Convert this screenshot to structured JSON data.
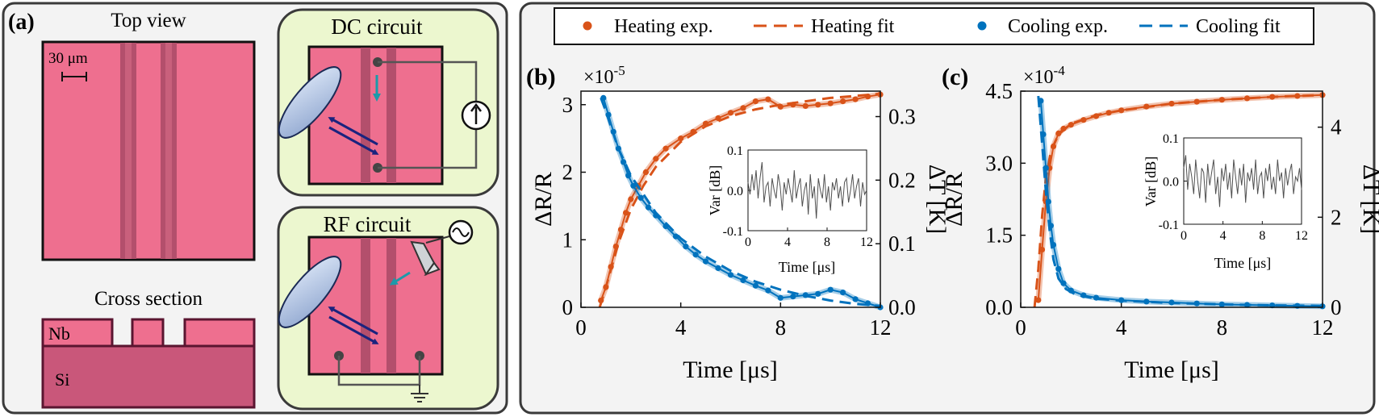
{
  "panel_a": {
    "label": "(a)",
    "top_view_title": "Top view",
    "scale_bar": "30 μm",
    "cross_section_title": "Cross section",
    "nb_label": "Nb",
    "si_label": "Si",
    "dc_title": "DC circuit",
    "rf_title": "RF circuit"
  },
  "colors": {
    "heating": "#d95319",
    "cooling": "#0072bd",
    "film": "#ee6f8f",
    "circuit_bg": "#ecf7cf",
    "inset_line": "#505050"
  },
  "legend": {
    "heating_exp": "Heating exp.",
    "heating_fit": "Heating fit",
    "cooling_exp": "Cooling exp.",
    "cooling_fit": "Cooling fit"
  },
  "chart_data": [
    {
      "panel": "(b)",
      "type": "line",
      "multiplier": "×10",
      "multiplier_exp": "-5",
      "xlabel": "Time [μs]",
      "ylabel": "ΔR/R",
      "y2label": "ΔT [K]",
      "xlim": [
        0,
        12
      ],
      "ylim": [
        0,
        3.2
      ],
      "y2lim": [
        0,
        0.34
      ],
      "xticks": [
        "0",
        "4",
        "8",
        "12"
      ],
      "yticks": [
        "0",
        "1",
        "2",
        "3"
      ],
      "y2ticks": [
        "0.0",
        "0.1",
        "0.2",
        "0.3"
      ],
      "series": [
        {
          "name": "Heating exp.",
          "style": "dots",
          "x": [
            0.8,
            1.0,
            1.2,
            1.4,
            1.6,
            1.8,
            2.0,
            2.3,
            2.6,
            3.0,
            3.4,
            4.0,
            4.5,
            5.0,
            5.5,
            6.0,
            6.5,
            7.0,
            7.5,
            8.0,
            8.5,
            9.0,
            9.5,
            10.0,
            10.5,
            11.0,
            11.5,
            12.0
          ],
          "y": [
            0.1,
            0.3,
            0.6,
            0.9,
            1.15,
            1.4,
            1.6,
            1.8,
            2.0,
            2.2,
            2.35,
            2.5,
            2.6,
            2.72,
            2.8,
            2.88,
            2.95,
            3.05,
            3.08,
            2.97,
            3.0,
            2.98,
            3.0,
            3.02,
            3.05,
            3.08,
            3.12,
            3.15
          ]
        },
        {
          "name": "Heating fit",
          "style": "dashed",
          "x": [
            0.75,
            1.0,
            1.5,
            2.0,
            2.5,
            3.0,
            4.0,
            5.0,
            6.0,
            7.0,
            8.0,
            9.0,
            10.0,
            11.0,
            12.0
          ],
          "y": [
            0,
            0.3,
            0.95,
            1.45,
            1.8,
            2.08,
            2.45,
            2.68,
            2.83,
            2.93,
            3.0,
            3.05,
            3.1,
            3.13,
            3.16
          ]
        },
        {
          "name": "Cooling exp.",
          "style": "dots",
          "x": [
            0.9,
            1.1,
            1.3,
            1.5,
            1.7,
            1.9,
            2.1,
            2.4,
            2.7,
            3.0,
            3.4,
            3.8,
            4.2,
            4.6,
            5.0,
            5.5,
            6.0,
            6.5,
            7.0,
            7.5,
            8.0,
            8.5,
            9.0,
            9.5,
            10.0,
            10.5,
            11.0,
            11.5,
            12.0
          ],
          "y": [
            3.1,
            2.85,
            2.6,
            2.35,
            2.15,
            1.95,
            1.8,
            1.62,
            1.48,
            1.36,
            1.2,
            1.05,
            0.9,
            0.78,
            0.68,
            0.58,
            0.48,
            0.4,
            0.32,
            0.25,
            0.14,
            0.16,
            0.18,
            0.2,
            0.26,
            0.22,
            0.12,
            0.06,
            0.0
          ]
        },
        {
          "name": "Cooling fit",
          "style": "dashed",
          "x": [
            0.8,
            1.0,
            1.5,
            2.0,
            3.0,
            4.0,
            5.0,
            6.0,
            7.0,
            8.0,
            9.0,
            10.0,
            11.0,
            12.0
          ],
          "y": [
            3.1,
            2.9,
            2.35,
            1.95,
            1.4,
            1.02,
            0.75,
            0.54,
            0.38,
            0.26,
            0.17,
            0.1,
            0.05,
            0.02
          ]
        }
      ],
      "inset": {
        "xlabel": "Time [μs]",
        "ylabel": "Var [dB]",
        "xlim": [
          0,
          12
        ],
        "ylim": [
          -0.1,
          0.1
        ],
        "xticks": [
          "0",
          "4",
          "8",
          "12"
        ],
        "yticks": [
          "-0.1",
          "0.0",
          "0.1"
        ],
        "values": [
          0.02,
          -0.01,
          0.04,
          0.0,
          0.05,
          -0.02,
          0.03,
          0.07,
          -0.03,
          0.01,
          0.02,
          -0.04,
          0.03,
          0.0,
          -0.02,
          0.04,
          0.01,
          -0.05,
          0.02,
          -0.01,
          0.03,
          0.0,
          -0.03,
          0.05,
          -0.02,
          0.01,
          0.03,
          -0.04,
          0.0,
          0.02,
          -0.06,
          0.04,
          -0.02,
          0.01,
          -0.07,
          0.03,
          0.0,
          -0.02,
          0.04,
          -0.03,
          0.01,
          -0.05,
          0.02,
          0.0,
          0.03,
          -0.02,
          0.01,
          -0.04,
          0.02,
          0.03,
          -0.03,
          0.0,
          0.04,
          -0.02,
          0.01,
          0.03,
          -0.04,
          0.02,
          -0.01,
          0.0
        ]
      }
    },
    {
      "panel": "(c)",
      "type": "line",
      "multiplier": "×10",
      "multiplier_exp": "-4",
      "xlabel": "Time [μs]",
      "ylabel": "ΔR/R",
      "y2label": "ΔT [K]",
      "xlim": [
        0,
        12
      ],
      "ylim": [
        0,
        4.5
      ],
      "y2lim": [
        0,
        4.8
      ],
      "xticks": [
        "0",
        "4",
        "8",
        "12"
      ],
      "yticks": [
        "0.0",
        "1.5",
        "3.0",
        "4.5"
      ],
      "y2ticks": [
        "0",
        "2",
        "4"
      ],
      "series": [
        {
          "name": "Heating exp.",
          "style": "dots",
          "x": [
            0.7,
            0.85,
            1.0,
            1.15,
            1.3,
            1.5,
            1.7,
            2.0,
            2.5,
            3.0,
            3.5,
            4.0,
            5.0,
            6.0,
            7.0,
            8.0,
            9.0,
            10.0,
            11.0,
            12.0
          ],
          "y": [
            0.15,
            1.2,
            2.2,
            2.9,
            3.35,
            3.62,
            3.72,
            3.8,
            3.9,
            3.98,
            4.05,
            4.1,
            4.18,
            4.24,
            4.28,
            4.32,
            4.35,
            4.38,
            4.4,
            4.42
          ]
        },
        {
          "name": "Heating fit",
          "style": "dashed",
          "x": [
            0.55,
            0.7,
            0.85,
            1.0,
            1.2,
            1.5,
            2.0,
            3.0,
            4.0,
            6.0,
            8.0,
            10.0,
            12.0
          ],
          "y": [
            0,
            0.8,
            1.9,
            2.7,
            3.25,
            3.6,
            3.82,
            4.0,
            4.1,
            4.24,
            4.32,
            4.38,
            4.42
          ]
        },
        {
          "name": "Cooling exp.",
          "style": "dots",
          "x": [
            0.8,
            0.9,
            1.0,
            1.1,
            1.2,
            1.3,
            1.5,
            1.7,
            2.0,
            2.5,
            3.0,
            4.0,
            5.0,
            6.0,
            7.0,
            8.0,
            9.0,
            10.0,
            11.0,
            12.0
          ],
          "y": [
            4.3,
            3.6,
            2.9,
            2.2,
            1.7,
            1.3,
            0.8,
            0.5,
            0.35,
            0.25,
            0.2,
            0.15,
            0.12,
            0.1,
            0.08,
            0.06,
            0.05,
            0.04,
            0.03,
            0.02
          ]
        },
        {
          "name": "Cooling fit",
          "style": "dashed",
          "x": [
            0.7,
            0.85,
            1.0,
            1.15,
            1.3,
            1.5,
            1.8,
            2.2,
            3.0,
            4.0,
            6.0,
            8.0,
            10.0,
            12.0
          ],
          "y": [
            4.4,
            3.4,
            2.4,
            1.6,
            1.0,
            0.6,
            0.38,
            0.26,
            0.18,
            0.14,
            0.09,
            0.06,
            0.04,
            0.03
          ]
        }
      ],
      "inset": {
        "xlabel": "Time [μs]",
        "ylabel": "Var [dB]",
        "xlim": [
          0,
          12
        ],
        "ylim": [
          -0.1,
          0.1
        ],
        "xticks": [
          "0",
          "4",
          "8",
          "12"
        ],
        "yticks": [
          "-0.1",
          "0.0",
          "0.1"
        ],
        "values": [
          0.03,
          0.06,
          -0.02,
          0.04,
          0.01,
          -0.03,
          0.05,
          0.0,
          -0.04,
          0.03,
          0.02,
          -0.05,
          0.04,
          -0.01,
          0.02,
          0.05,
          -0.03,
          0.01,
          -0.06,
          0.03,
          0.0,
          0.04,
          -0.02,
          0.02,
          -0.04,
          0.05,
          0.01,
          -0.03,
          0.03,
          -0.01,
          0.04,
          -0.05,
          0.02,
          0.0,
          0.03,
          -0.02,
          0.05,
          -0.03,
          0.01,
          0.02,
          -0.04,
          0.03,
          0.0,
          0.04,
          -0.02,
          0.01,
          -0.03,
          0.05,
          0.0,
          0.02,
          -0.04,
          0.03,
          -0.01,
          0.02,
          0.04,
          -0.03,
          0.01,
          0.0,
          0.03,
          -0.02
        ]
      }
    }
  ]
}
